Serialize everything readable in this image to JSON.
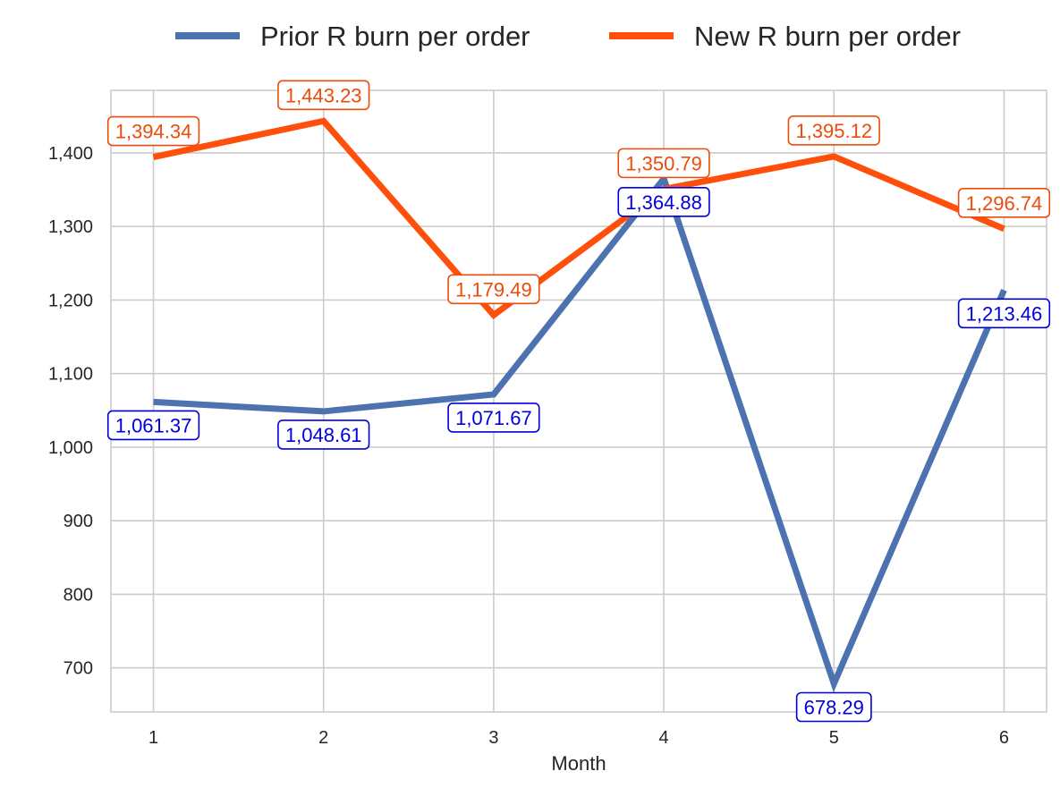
{
  "chart_data": {
    "type": "line",
    "title": "",
    "xlabel": "Month",
    "ylabel": "",
    "x": [
      1,
      2,
      3,
      4,
      5,
      6
    ],
    "x_tick_labels": [
      "1",
      "2",
      "3",
      "4",
      "5",
      "6"
    ],
    "y_ticks": [
      700,
      800,
      900,
      1000,
      1100,
      1200,
      1300,
      1400
    ],
    "y_tick_labels": [
      "700",
      "800",
      "900",
      "1,000",
      "1,100",
      "1,200",
      "1,300",
      "1,400"
    ],
    "ylim": [
      640,
      1485
    ],
    "xlim": [
      0.75,
      6.25
    ],
    "grid": true,
    "legend_position": "top-center",
    "series": [
      {
        "name": "Prior R burn per order",
        "color": "#4c72b0",
        "label_color": "#0000dd",
        "values": [
          1061.37,
          1048.61,
          1071.67,
          1364.88,
          678.29,
          1213.46
        ],
        "value_labels": [
          "1,061.37",
          "1,048.61",
          "1,071.67",
          "1,364.88",
          "678.29",
          "1,213.46"
        ]
      },
      {
        "name": "New R burn per order",
        "color": "#ff4f0a",
        "label_color": "#ee4b0a",
        "values": [
          1394.34,
          1443.23,
          1179.49,
          1350.79,
          1395.12,
          1296.74
        ],
        "value_labels": [
          "1,394.34",
          "1,443.23",
          "1,179.49",
          "1,350.79",
          "1,395.12",
          "1,296.74"
        ]
      }
    ]
  }
}
